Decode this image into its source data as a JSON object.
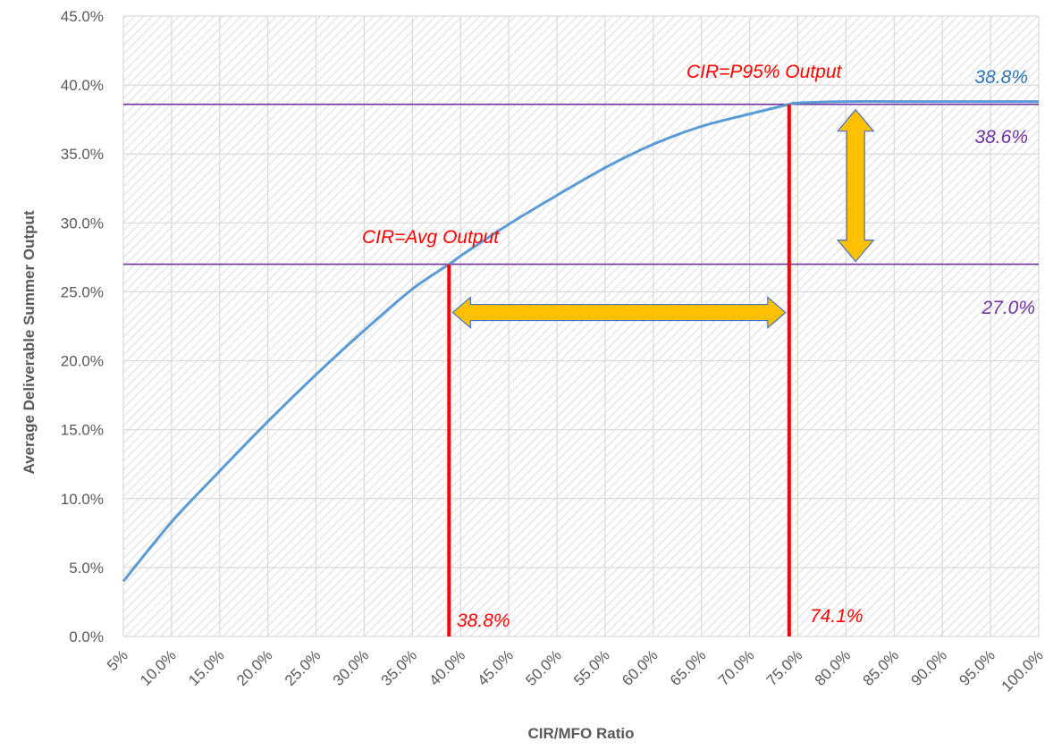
{
  "chart_data": {
    "type": "line",
    "xlabel": "CIR/MFO Ratio",
    "ylabel": "Average Deliverable Summer Output",
    "xlim": [
      5,
      100
    ],
    "ylim": [
      0,
      45
    ],
    "grid": true,
    "x_tick_labels": [
      "5%",
      "10.0%",
      "15.0%",
      "20.0%",
      "25.0%",
      "30.0%",
      "35.0%",
      "40.0%",
      "45.0%",
      "50.0%",
      "55.0%",
      "60.0%",
      "65.0%",
      "70.0%",
      "75.0%",
      "80.0%",
      "85.0%",
      "90.0%",
      "95.0%",
      "100.0%"
    ],
    "y_tick_labels": [
      "0.0%",
      "5.0%",
      "10.0%",
      "15.0%",
      "20.0%",
      "25.0%",
      "30.0%",
      "35.0%",
      "40.0%",
      "45.0%"
    ],
    "series": [
      {
        "color": "#5b9bd5",
        "x": [
          5,
          10,
          15,
          20,
          25,
          30,
          35,
          38.8,
          40,
          45,
          50,
          55,
          60,
          65,
          70,
          74.1,
          75,
          80,
          85,
          90,
          95,
          100
        ],
        "y": [
          4.0,
          8.3,
          12.0,
          15.6,
          19.0,
          22.2,
          25.2,
          27.0,
          27.6,
          29.9,
          32.0,
          34.0,
          35.7,
          37.0,
          37.9,
          38.6,
          38.7,
          38.8,
          38.8,
          38.8,
          38.8,
          38.8
        ]
      }
    ],
    "hlines": [
      {
        "y": 38.6,
        "color": "#7030a0"
      },
      {
        "y": 27.0,
        "color": "#7030a0"
      }
    ],
    "vlines": [
      {
        "x": 38.8,
        "color": "#ff0000"
      },
      {
        "x": 74.1,
        "color": "#ff0000"
      }
    ],
    "annotations": {
      "avg_output": "CIR=Avg Output",
      "p95_output": "CIR=P95% Output",
      "max_value": "38.8%",
      "p95_value": "38.6%",
      "avg_value": "27.0%",
      "avg_cir": "38.8%",
      "p95_cir": "74.1%"
    },
    "colors": {
      "curve": "#5b9bd5",
      "reference_lines": "#7030a0",
      "cir_lines": "#ff0000",
      "arrows": "#ffc000",
      "arrow_outline": "#4472c4"
    }
  }
}
